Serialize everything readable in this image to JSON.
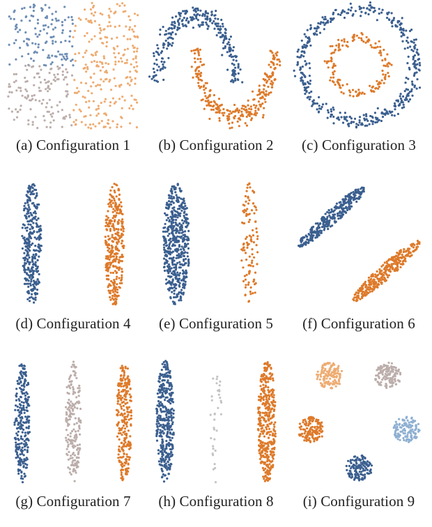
{
  "palette": {
    "blue": "#3b5f8f",
    "orange": "#de7a2a",
    "light_orange": "#eeac72",
    "grey": "#bcaeab",
    "light_blue": "#8fb0d2",
    "light_grey": "#c4c4c4"
  },
  "chart_data": [
    {
      "type": "scatter",
      "caption": "(a)  Configuration 1",
      "clusters": [
        {
          "shape": "rect",
          "center": [
            -0.5,
            0.5
          ],
          "spread": [
            0.5,
            0.5
          ],
          "n": 130,
          "color": "#6f8fb6"
        },
        {
          "shape": "rect",
          "center": [
            0.5,
            0.5
          ],
          "spread": [
            0.5,
            0.5
          ],
          "n": 130,
          "color": "#eeac72"
        },
        {
          "shape": "rect",
          "center": [
            -0.5,
            -0.5
          ],
          "spread": [
            0.5,
            0.5
          ],
          "n": 130,
          "color": "#bcaeab"
        },
        {
          "shape": "rect",
          "center": [
            0.5,
            -0.5
          ],
          "spread": [
            0.5,
            0.5
          ],
          "n": 130,
          "color": "#eeac72"
        }
      ],
      "xlim": [
        -1.02,
        1.02
      ],
      "ylim": [
        -1.02,
        1.02
      ]
    },
    {
      "type": "scatter",
      "caption": "(b)  Configuration 2",
      "clusters": [
        {
          "shape": "arc",
          "center": [
            0,
            0
          ],
          "radius": 1,
          "angle": [
            0,
            180
          ],
          "noise": 0.08,
          "n": 280,
          "color": "#3b5f8f"
        },
        {
          "shape": "arc",
          "center": [
            1,
            0.5
          ],
          "radius": 1,
          "angle": [
            180,
            360
          ],
          "noise": 0.08,
          "n": 280,
          "color": "#de7a2a"
        }
      ],
      "xlim": [
        -1.2,
        2.2
      ],
      "ylim": [
        -0.7,
        1.2
      ]
    },
    {
      "type": "scatter",
      "caption": "(c)  Configuration 3",
      "clusters": [
        {
          "shape": "ring",
          "center": [
            0,
            0
          ],
          "radius": 1,
          "noise": 0.06,
          "n": 420,
          "color": "#3b5f8f"
        },
        {
          "shape": "ring",
          "center": [
            0,
            0
          ],
          "radius": 0.5,
          "noise": 0.05,
          "n": 150,
          "color": "#de7a2a"
        }
      ],
      "xlim": [
        -1.15,
        1.15
      ],
      "ylim": [
        -1.15,
        1.15
      ]
    },
    {
      "type": "scatter",
      "caption": "(d)  Configuration 4",
      "clusters": [
        {
          "shape": "ellipse",
          "center": [
            -1.5,
            0
          ],
          "spread": [
            0.35,
            2
          ],
          "n": 320,
          "color": "#3b5f8f"
        },
        {
          "shape": "ellipse",
          "center": [
            1.5,
            0
          ],
          "spread": [
            0.35,
            2
          ],
          "n": 320,
          "color": "#de7a2a"
        }
      ],
      "xlim": [
        -2.4,
        2.4
      ],
      "ylim": [
        -2.1,
        2.1
      ]
    },
    {
      "type": "scatter",
      "caption": "(e)  Configuration 5",
      "clusters": [
        {
          "shape": "ellipse",
          "center": [
            -1.2,
            0
          ],
          "spread": [
            0.45,
            2
          ],
          "n": 520,
          "color": "#3b5f8f"
        },
        {
          "shape": "ellipse",
          "center": [
            1.3,
            0
          ],
          "spread": [
            0.3,
            2
          ],
          "n": 110,
          "color": "#de7a2a"
        }
      ],
      "xlim": [
        -2.1,
        2.4
      ],
      "ylim": [
        -2.1,
        2.1
      ]
    },
    {
      "type": "scatter",
      "caption": "(f)  Configuration 6",
      "clusters": [
        {
          "shape": "tilted_ellipse",
          "center": [
            -0.7,
            0.55
          ],
          "spread": [
            1.05,
            0.16
          ],
          "angle": 35,
          "n": 320,
          "color": "#3b5f8f"
        },
        {
          "shape": "tilted_ellipse",
          "center": [
            0.7,
            -0.55
          ],
          "spread": [
            1.05,
            0.16
          ],
          "angle": 35,
          "n": 320,
          "color": "#de7a2a"
        }
      ],
      "xlim": [
        -1.7,
        1.7
      ],
      "ylim": [
        -1.3,
        1.3
      ]
    },
    {
      "type": "scatter",
      "caption": "(g)  Configuration 7",
      "clusters": [
        {
          "shape": "ellipse",
          "center": [
            -2,
            0
          ],
          "spread": [
            0.3,
            2
          ],
          "n": 260,
          "color": "#3b5f8f"
        },
        {
          "shape": "ellipse",
          "center": [
            0,
            0
          ],
          "spread": [
            0.3,
            2
          ],
          "n": 190,
          "color": "#bcaeab"
        },
        {
          "shape": "ellipse",
          "center": [
            2,
            0
          ],
          "spread": [
            0.3,
            2
          ],
          "n": 260,
          "color": "#de7a2a"
        }
      ],
      "xlim": [
        -2.6,
        2.6
      ],
      "ylim": [
        -2.1,
        2.1
      ]
    },
    {
      "type": "scatter",
      "caption": "(h)  Configuration 8",
      "clusters": [
        {
          "shape": "ellipse",
          "center": [
            -2,
            0
          ],
          "spread": [
            0.35,
            2
          ],
          "n": 380,
          "color": "#3b5f8f"
        },
        {
          "shape": "ellipse",
          "center": [
            0,
            0
          ],
          "spread": [
            0.22,
            2
          ],
          "n": 35,
          "color": "#c4c4c4"
        },
        {
          "shape": "ellipse",
          "center": [
            2,
            0
          ],
          "spread": [
            0.35,
            2
          ],
          "n": 380,
          "color": "#de7a2a"
        }
      ],
      "xlim": [
        -2.6,
        2.6
      ],
      "ylim": [
        -2.1,
        2.1
      ]
    },
    {
      "type": "scatter",
      "caption": "(i)  Configuration 9",
      "clusters": [
        {
          "shape": "ellipse",
          "center": [
            -0.55,
            0.85
          ],
          "spread": [
            0.25,
            0.25
          ],
          "n": 130,
          "color": "#eeac72"
        },
        {
          "shape": "ellipse",
          "center": [
            0.55,
            0.85
          ],
          "spread": [
            0.25,
            0.25
          ],
          "n": 130,
          "color": "#bcaeab"
        },
        {
          "shape": "ellipse",
          "center": [
            -0.9,
            -0.2
          ],
          "spread": [
            0.25,
            0.25
          ],
          "n": 130,
          "color": "#de7a2a"
        },
        {
          "shape": "ellipse",
          "center": [
            0.9,
            -0.2
          ],
          "spread": [
            0.25,
            0.25
          ],
          "n": 130,
          "color": "#8fb0d2"
        },
        {
          "shape": "ellipse",
          "center": [
            0,
            -0.95
          ],
          "spread": [
            0.25,
            0.25
          ],
          "n": 130,
          "color": "#3b5f8f"
        }
      ],
      "xlim": [
        -1.25,
        1.25
      ],
      "ylim": [
        -1.3,
        1.2
      ]
    }
  ]
}
